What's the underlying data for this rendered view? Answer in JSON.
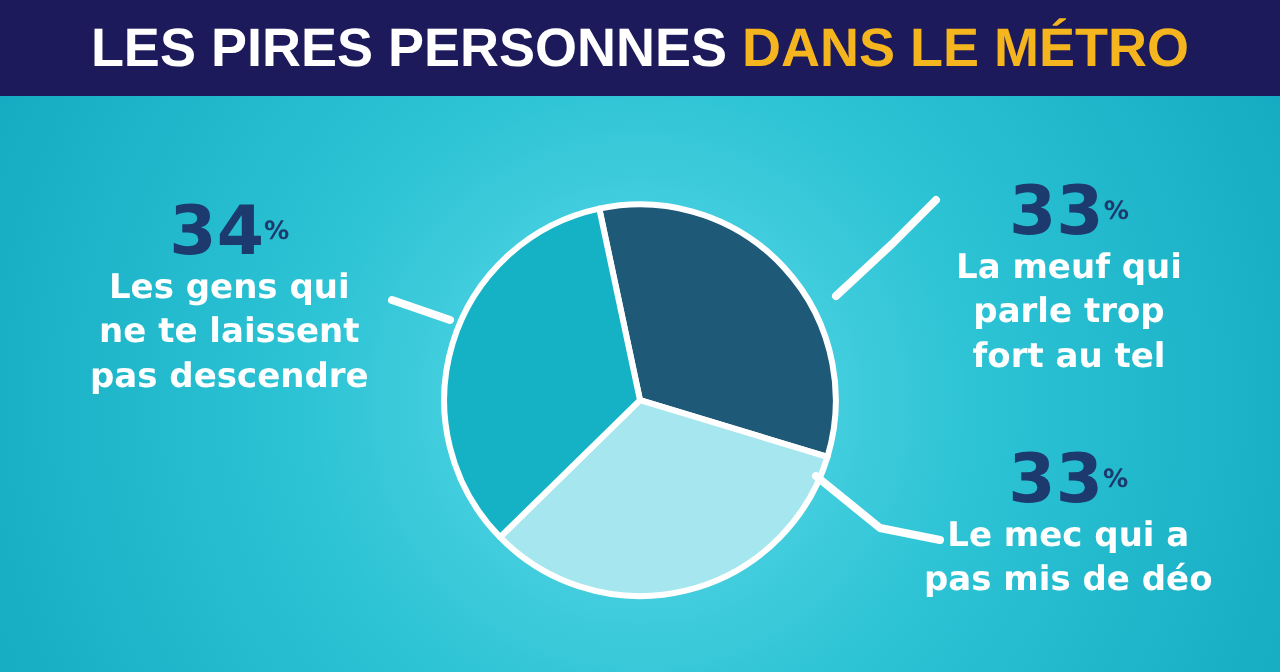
{
  "chart_data": {
    "type": "pie",
    "title": "LES PIRES PERSONNES DANS LE MÉTRO",
    "categories": [
      "La meuf qui parle trop fort au tel",
      "Le mec qui a pas mis de déo",
      "Les gens qui ne te laissent pas descendre"
    ],
    "values": [
      33,
      33,
      34
    ],
    "colors": [
      "#1e5a78",
      "#a6e6ee",
      "#15b2c6"
    ],
    "value_labels": [
      "33$^{%}$",
      "33$^{%}$",
      "34$^{%}$"
    ],
    "legend": false
  }
}
